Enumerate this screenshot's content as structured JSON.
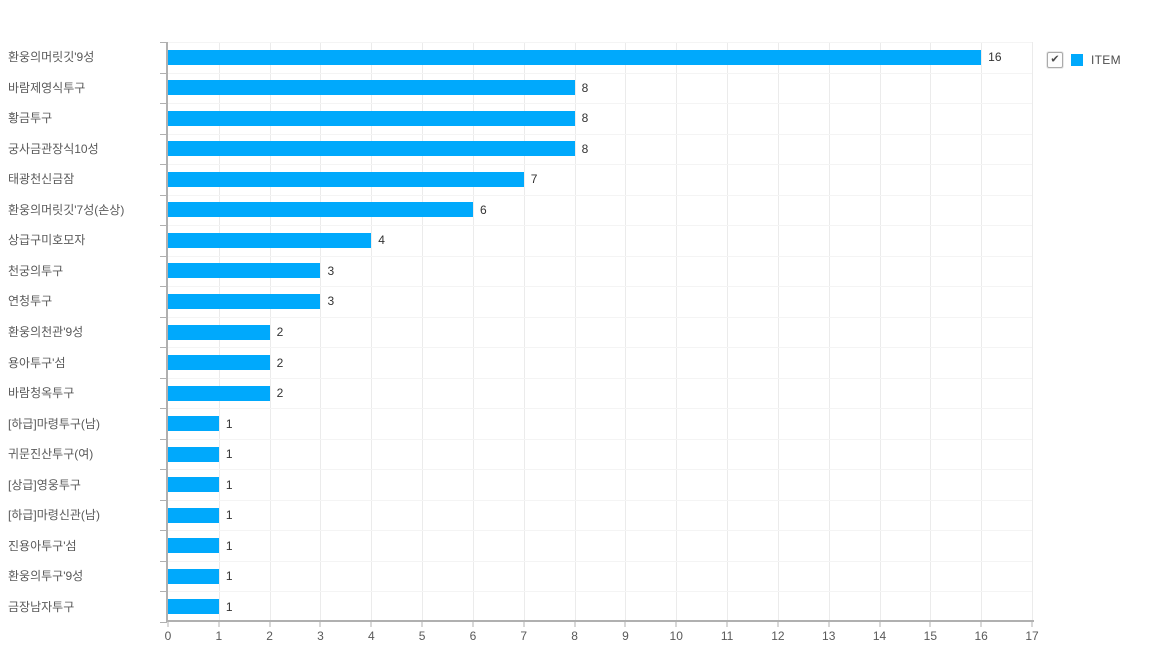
{
  "legend": {
    "label": "ITEM",
    "checked": true,
    "checkmark_glyph": "✔",
    "swatch_color": "#00a9fc"
  },
  "chart_data": {
    "type": "bar",
    "orientation": "horizontal",
    "series_name": "ITEM",
    "categories": [
      "환웅의머릿깃'9성",
      "바람제영식투구",
      "황금투구",
      "궁사금관장식10성",
      "태광천신금잠",
      "환웅의머릿깃'7성(손상)",
      "상급구미호모자",
      "천궁의투구",
      "연청투구",
      "환웅의천관'9성",
      "용아투구'섬",
      "바람청옥투구",
      "[하급]마령투구(남)",
      "귀문진산투구(여)",
      "[상급]영웅투구",
      "[하급]마령신관(남)",
      "진용아투구'섬",
      "환웅의투구'9성",
      "금장남자투구"
    ],
    "values": [
      16,
      8,
      8,
      8,
      7,
      6,
      4,
      3,
      3,
      2,
      2,
      2,
      1,
      1,
      1,
      1,
      1,
      1,
      1
    ],
    "xlim": [
      0,
      17
    ],
    "x_tick_step": 1,
    "bar_color": "#00a9fc",
    "grid": true,
    "value_labels": true,
    "legend_position": "top-right"
  }
}
